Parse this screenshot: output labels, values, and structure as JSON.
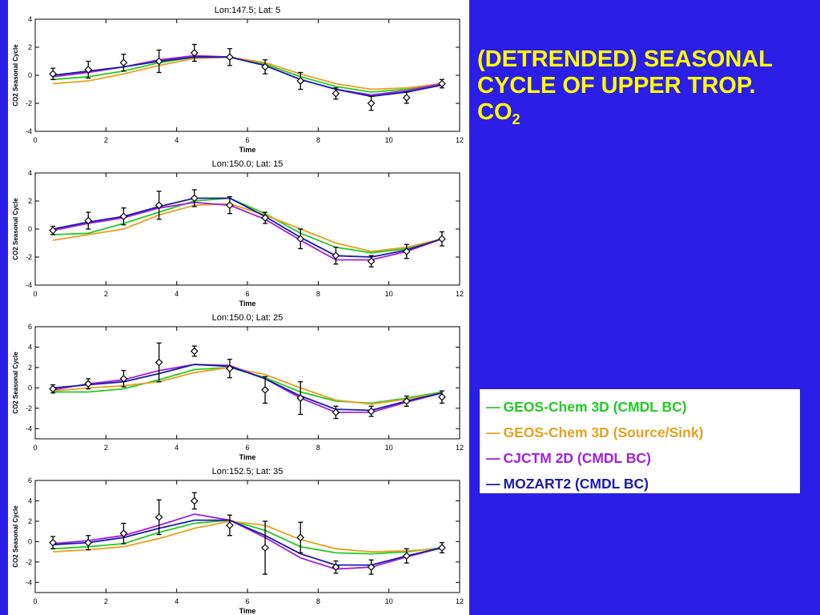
{
  "slide": {
    "title_lines": [
      "(DETRENDED) SEASONAL",
      "CYCLE OF UPPER TROP."
    ],
    "title_co": "CO",
    "title_sub": "2",
    "background": "#2b1ee6",
    "title_color": "#ffff00"
  },
  "legend": {
    "items": [
      {
        "dash": "—",
        "label": "GEOS-Chem 3D (CMDL BC)",
        "color": "#22cc22"
      },
      {
        "dash": "—",
        "label": "GEOS-Chem 3D (Source/Sink)",
        "color": "#e8a020"
      },
      {
        "dash": "—",
        "label": "CJCTM 2D (CMDL BC)",
        "color": "#a020e0"
      },
      {
        "dash": "—",
        "label": "MOZART2 (CMDL BC)",
        "color": "#1a1aa8"
      }
    ]
  },
  "chart_data": [
    {
      "type": "line",
      "title": "Lon:147.5; Lat:  5",
      "xlabel": "Time",
      "ylabel": "CO2 Seasonal Cycle",
      "xlim": [
        0,
        12
      ],
      "ylim": [
        -4,
        4
      ],
      "xticks": [
        0,
        2,
        4,
        6,
        8,
        10,
        12
      ],
      "yticks": [
        -4,
        -2,
        0,
        2,
        4
      ],
      "x": [
        0.5,
        1.5,
        2.5,
        3.5,
        4.5,
        5.5,
        6.5,
        7.5,
        8.5,
        9.5,
        10.5,
        11.5
      ],
      "series": [
        {
          "values": [
            -0.3,
            -0.1,
            0.3,
            0.9,
            1.3,
            1.3,
            0.8,
            -0.1,
            -0.8,
            -1.2,
            -1.0,
            -0.6
          ]
        },
        {
          "values": [
            -0.6,
            -0.4,
            0.1,
            0.7,
            1.2,
            1.3,
            0.9,
            0.1,
            -0.6,
            -1.0,
            -0.9,
            -0.6
          ]
        },
        {
          "values": [
            -0.1,
            0.2,
            0.6,
            1.1,
            1.4,
            1.3,
            0.7,
            -0.3,
            -1.0,
            -1.4,
            -1.1,
            -0.6
          ]
        },
        {
          "values": [
            0.0,
            0.3,
            0.6,
            1.0,
            1.3,
            1.3,
            0.7,
            -0.3,
            -1.0,
            -1.5,
            -1.2,
            -0.7
          ]
        }
      ],
      "observations": [
        {
          "x": 0.5,
          "y": 0.1,
          "err": 0.4
        },
        {
          "x": 1.5,
          "y": 0.4,
          "err": 0.6
        },
        {
          "x": 2.5,
          "y": 0.9,
          "err": 0.6
        },
        {
          "x": 3.5,
          "y": 1.0,
          "err": 0.8
        },
        {
          "x": 4.5,
          "y": 1.6,
          "err": 0.6
        },
        {
          "x": 5.5,
          "y": 1.3,
          "err": 0.6
        },
        {
          "x": 6.5,
          "y": 0.6,
          "err": 0.5
        },
        {
          "x": 7.5,
          "y": -0.4,
          "err": 0.6
        },
        {
          "x": 8.5,
          "y": -1.3,
          "err": 0.4
        },
        {
          "x": 9.5,
          "y": -2.0,
          "err": 0.5
        },
        {
          "x": 10.5,
          "y": -1.6,
          "err": 0.4
        },
        {
          "x": 11.5,
          "y": -0.6,
          "err": 0.3
        }
      ]
    },
    {
      "type": "line",
      "title": "Lon:150.0;  Lat:  15",
      "xlabel": "Time",
      "ylabel": "CO2 Seasonal Cycle",
      "xlim": [
        0,
        12
      ],
      "ylim": [
        -4,
        4
      ],
      "xticks": [
        0,
        2,
        4,
        6,
        8,
        10,
        12
      ],
      "yticks": [
        -4,
        -2,
        0,
        2,
        4
      ],
      "x": [
        0.5,
        1.5,
        2.5,
        3.5,
        4.5,
        5.5,
        6.5,
        7.5,
        8.5,
        9.5,
        10.5,
        11.5
      ],
      "series": [
        {
          "values": [
            -0.4,
            -0.3,
            0.4,
            1.2,
            2.0,
            2.2,
            1.1,
            -0.3,
            -1.3,
            -1.7,
            -1.4,
            -0.7
          ]
        },
        {
          "values": [
            -0.8,
            -0.4,
            0.0,
            1.0,
            1.7,
            1.8,
            1.0,
            0.0,
            -1.0,
            -1.6,
            -1.3,
            -0.7
          ]
        },
        {
          "values": [
            -0.1,
            0.4,
            0.8,
            1.5,
            1.9,
            1.7,
            0.7,
            -0.8,
            -2.2,
            -2.2,
            -1.6,
            -0.7
          ]
        },
        {
          "values": [
            0.0,
            0.5,
            0.9,
            1.6,
            2.2,
            2.2,
            0.9,
            -0.6,
            -1.9,
            -2.0,
            -1.5,
            -0.7
          ]
        }
      ],
      "observations": [
        {
          "x": 0.5,
          "y": -0.1,
          "err": 0.3
        },
        {
          "x": 1.5,
          "y": 0.6,
          "err": 0.6
        },
        {
          "x": 2.5,
          "y": 0.9,
          "err": 0.6
        },
        {
          "x": 3.5,
          "y": 1.7,
          "err": 1.0
        },
        {
          "x": 4.5,
          "y": 2.2,
          "err": 0.6
        },
        {
          "x": 5.5,
          "y": 1.7,
          "err": 0.6
        },
        {
          "x": 6.5,
          "y": 0.8,
          "err": 0.4
        },
        {
          "x": 7.5,
          "y": -0.7,
          "err": 0.7
        },
        {
          "x": 8.5,
          "y": -1.9,
          "err": 0.6
        },
        {
          "x": 9.5,
          "y": -2.3,
          "err": 0.4
        },
        {
          "x": 10.5,
          "y": -1.6,
          "err": 0.5
        },
        {
          "x": 11.5,
          "y": -0.7,
          "err": 0.5
        }
      ]
    },
    {
      "type": "line",
      "title": "Lon:150.0;  Lat:  25",
      "xlabel": "Time",
      "ylabel": "CO2 Seasonal Cycle",
      "xlim": [
        0,
        12
      ],
      "ylim": [
        -5,
        6
      ],
      "xticks": [
        0,
        2,
        4,
        6,
        8,
        10,
        12
      ],
      "yticks": [
        -4,
        -2,
        0,
        2,
        4,
        6
      ],
      "x": [
        0.5,
        1.5,
        2.5,
        3.5,
        4.5,
        5.5,
        6.5,
        7.5,
        8.5,
        9.5,
        10.5,
        11.5
      ],
      "series": [
        {
          "values": [
            -0.4,
            -0.4,
            -0.1,
            0.8,
            1.8,
            2.0,
            1.0,
            -0.4,
            -1.3,
            -1.5,
            -1.0,
            -0.4
          ]
        },
        {
          "values": [
            -0.3,
            0.0,
            0.2,
            0.6,
            1.5,
            2.0,
            1.3,
            0.0,
            -1.2,
            -1.6,
            -1.1,
            -0.5
          ]
        },
        {
          "values": [
            -0.2,
            0.4,
            0.8,
            1.7,
            2.3,
            2.2,
            0.9,
            -1.0,
            -2.4,
            -2.4,
            -1.4,
            -0.5
          ]
        },
        {
          "values": [
            0.0,
            0.3,
            0.6,
            1.4,
            2.3,
            2.1,
            0.9,
            -0.8,
            -2.1,
            -2.2,
            -1.3,
            -0.5
          ]
        }
      ],
      "observations": [
        {
          "x": 0.5,
          "y": -0.1,
          "err": 0.4
        },
        {
          "x": 1.5,
          "y": 0.4,
          "err": 0.5
        },
        {
          "x": 2.5,
          "y": 0.9,
          "err": 0.8
        },
        {
          "x": 3.5,
          "y": 2.5,
          "err": 1.9
        },
        {
          "x": 4.5,
          "y": 3.6,
          "err": 0.5
        },
        {
          "x": 5.5,
          "y": 1.9,
          "err": 0.9
        },
        {
          "x": 6.5,
          "y": -0.2,
          "err": 1.3
        },
        {
          "x": 7.5,
          "y": -1.0,
          "err": 1.6
        },
        {
          "x": 8.5,
          "y": -2.4,
          "err": 0.6
        },
        {
          "x": 9.5,
          "y": -2.3,
          "err": 0.5
        },
        {
          "x": 10.5,
          "y": -1.3,
          "err": 0.5
        },
        {
          "x": 11.5,
          "y": -0.9,
          "err": 0.6
        }
      ]
    },
    {
      "type": "line",
      "title": "Lon:152.5;  Lat:  35",
      "xlabel": "Time",
      "ylabel": "CO2 Seasonal Cycle",
      "xlim": [
        0,
        12
      ],
      "ylim": [
        -5,
        6
      ],
      "xticks": [
        0,
        2,
        4,
        6,
        8,
        10,
        12
      ],
      "yticks": [
        -4,
        -2,
        0,
        2,
        4,
        6
      ],
      "x": [
        0.5,
        1.5,
        2.5,
        3.5,
        4.5,
        5.5,
        6.5,
        7.5,
        8.5,
        9.5,
        10.5,
        11.5
      ],
      "series": [
        {
          "values": [
            -0.7,
            -0.5,
            -0.2,
            0.9,
            1.8,
            2.1,
            1.1,
            -0.5,
            -1.1,
            -1.2,
            -1.0,
            -0.6
          ]
        },
        {
          "values": [
            -1.0,
            -0.8,
            -0.5,
            0.3,
            1.3,
            2.0,
            1.6,
            0.2,
            -0.7,
            -1.0,
            -0.9,
            -0.7
          ]
        },
        {
          "values": [
            -0.2,
            0.1,
            0.6,
            1.6,
            2.7,
            2.1,
            0.4,
            -1.6,
            -2.7,
            -2.5,
            -1.5,
            -0.6
          ]
        },
        {
          "values": [
            -0.3,
            -0.1,
            0.4,
            1.3,
            2.1,
            2.1,
            0.6,
            -1.2,
            -2.3,
            -2.3,
            -1.4,
            -0.6
          ]
        }
      ],
      "observations": [
        {
          "x": 0.5,
          "y": -0.1,
          "err": 0.6
        },
        {
          "x": 1.5,
          "y": -0.1,
          "err": 0.7
        },
        {
          "x": 2.5,
          "y": 0.8,
          "err": 1.0
        },
        {
          "x": 3.5,
          "y": 2.4,
          "err": 1.7
        },
        {
          "x": 4.5,
          "y": 4.0,
          "err": 0.8
        },
        {
          "x": 5.5,
          "y": 1.6,
          "err": 1.0
        },
        {
          "x": 6.5,
          "y": -0.6,
          "err": 2.6
        },
        {
          "x": 7.5,
          "y": 0.4,
          "err": 1.5
        },
        {
          "x": 8.5,
          "y": -2.5,
          "err": 0.6
        },
        {
          "x": 9.5,
          "y": -2.5,
          "err": 0.7
        },
        {
          "x": 10.5,
          "y": -1.4,
          "err": 0.7
        },
        {
          "x": 11.5,
          "y": -0.6,
          "err": 0.5
        }
      ]
    }
  ]
}
